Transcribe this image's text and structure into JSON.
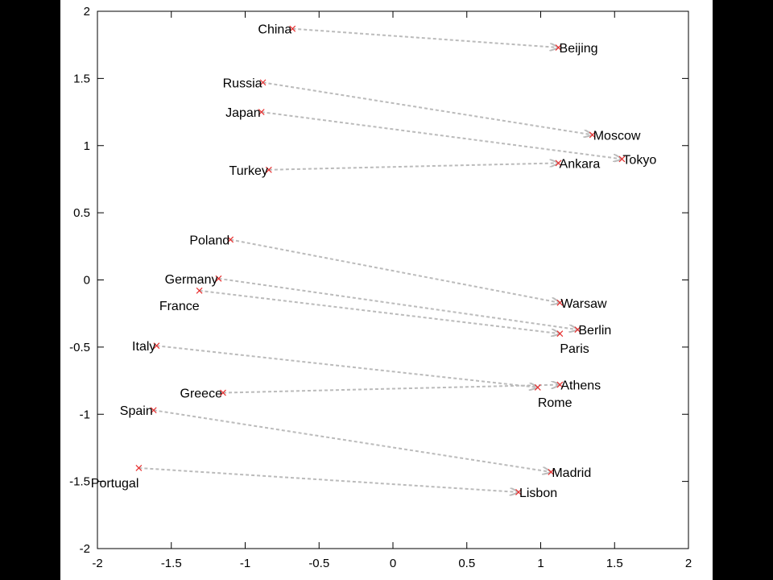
{
  "chart_data": {
    "type": "scatter",
    "title": "",
    "xlabel": "",
    "ylabel": "",
    "xlim": [
      -2,
      2
    ],
    "ylim": [
      -2,
      2
    ],
    "xticks": [
      "-2",
      "-1.5",
      "-1",
      "-0.5",
      "0",
      "0.5",
      "1",
      "1.5",
      "2"
    ],
    "yticks": [
      "2",
      "1.5",
      "1",
      "0.5",
      "0",
      "-0.5",
      "-1",
      "-1.5",
      "-2"
    ],
    "grid": false,
    "marker_color": "#e83030",
    "arrow_color": "#bbbbbb",
    "points": [
      {
        "label": "China",
        "x": -0.68,
        "y": 1.87
      },
      {
        "label": "Beijing",
        "x": 1.12,
        "y": 1.73
      },
      {
        "label": "Russia",
        "x": -0.88,
        "y": 1.47
      },
      {
        "label": "Moscow",
        "x": 1.35,
        "y": 1.08
      },
      {
        "label": "Japan",
        "x": -0.89,
        "y": 1.25
      },
      {
        "label": "Tokyo",
        "x": 1.55,
        "y": 0.9
      },
      {
        "label": "Turkey",
        "x": -0.84,
        "y": 0.82
      },
      {
        "label": "Ankara",
        "x": 1.12,
        "y": 0.87
      },
      {
        "label": "Poland",
        "x": -1.1,
        "y": 0.3
      },
      {
        "label": "Warsaw",
        "x": 1.13,
        "y": -0.17
      },
      {
        "label": "Germany",
        "x": -1.18,
        "y": 0.01
      },
      {
        "label": "Berlin",
        "x": 1.25,
        "y": -0.37
      },
      {
        "label": "France",
        "x": -1.31,
        "y": -0.08
      },
      {
        "label": "Paris",
        "x": 1.13,
        "y": -0.4
      },
      {
        "label": "Italy",
        "x": -1.6,
        "y": -0.49
      },
      {
        "label": "Rome",
        "x": 0.98,
        "y": -0.8
      },
      {
        "label": "Greece",
        "x": -1.15,
        "y": -0.84
      },
      {
        "label": "Athens",
        "x": 1.13,
        "y": -0.78
      },
      {
        "label": "Spain",
        "x": -1.62,
        "y": -0.97
      },
      {
        "label": "Madrid",
        "x": 1.07,
        "y": -1.43
      },
      {
        "label": "Portugal",
        "x": -1.72,
        "y": -1.4
      },
      {
        "label": "Lisbon",
        "x": 0.85,
        "y": -1.58
      }
    ],
    "pairs": [
      [
        "China",
        "Beijing"
      ],
      [
        "Russia",
        "Moscow"
      ],
      [
        "Japan",
        "Tokyo"
      ],
      [
        "Turkey",
        "Ankara"
      ],
      [
        "Poland",
        "Warsaw"
      ],
      [
        "Germany",
        "Berlin"
      ],
      [
        "France",
        "Paris"
      ],
      [
        "Italy",
        "Rome"
      ],
      [
        "Greece",
        "Athens"
      ],
      [
        "Spain",
        "Madrid"
      ],
      [
        "Portugal",
        "Lisbon"
      ]
    ]
  }
}
